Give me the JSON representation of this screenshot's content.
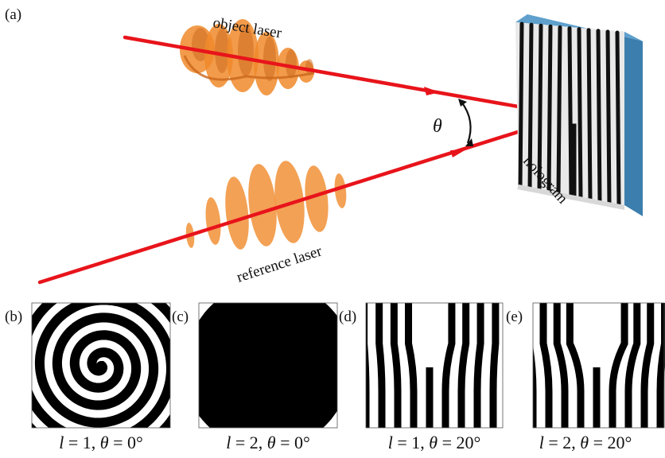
{
  "panel_labels": {
    "a": "(a)",
    "b": "(b)",
    "c": "(c)",
    "d": "(d)",
    "e": "(e)"
  },
  "beam_labels": {
    "object": "object laser",
    "reference": "reference laser",
    "hologram": "hologram",
    "angle_symbol": "θ"
  },
  "captions": [
    {
      "l": "1",
      "theta": "0°"
    },
    {
      "l": "2",
      "theta": "0°"
    },
    {
      "l": "1",
      "theta": "20°"
    },
    {
      "l": "2",
      "theta": "20°"
    }
  ],
  "caption_text": {
    "l_var": "l",
    "theta_var": "θ",
    "eq": " = ",
    "sep": ", "
  },
  "colors": {
    "beam": "#e8141b",
    "wave": "#f08a2a",
    "wave_dark": "#c9661a",
    "hologram_edge": "#3c7fae",
    "hologram_top": "#5fa0cc"
  }
}
